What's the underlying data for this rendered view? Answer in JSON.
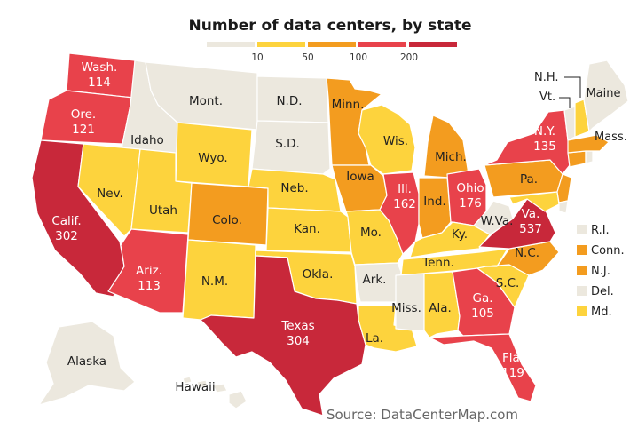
{
  "title": "Number of data centers, by state",
  "legend": {
    "tick_labels": [
      "10",
      "50",
      "100",
      "200"
    ],
    "colors": [
      "#ece8de",
      "#fdd33d",
      "#f39c1f",
      "#e8424b",
      "#c8283a"
    ]
  },
  "source": "Source: DataCenterMap.com",
  "states": [
    {
      "abbr": "Wash.",
      "value": "114",
      "bin": 3
    },
    {
      "abbr": "Ore.",
      "value": "121",
      "bin": 3
    },
    {
      "abbr": "Calif.",
      "value": "302",
      "bin": 4
    },
    {
      "abbr": "Idaho",
      "value": "",
      "bin": 0
    },
    {
      "abbr": "Mont.",
      "value": "",
      "bin": 0
    },
    {
      "abbr": "Nev.",
      "value": "",
      "bin": 1
    },
    {
      "abbr": "Wyo.",
      "value": "",
      "bin": 1
    },
    {
      "abbr": "Utah",
      "value": "",
      "bin": 1
    },
    {
      "abbr": "Colo.",
      "value": "",
      "bin": 2
    },
    {
      "abbr": "Ariz.",
      "value": "113",
      "bin": 3
    },
    {
      "abbr": "N.M.",
      "value": "",
      "bin": 1
    },
    {
      "abbr": "N.D.",
      "value": "",
      "bin": 0
    },
    {
      "abbr": "S.D.",
      "value": "",
      "bin": 0
    },
    {
      "abbr": "Neb.",
      "value": "",
      "bin": 1
    },
    {
      "abbr": "Kan.",
      "value": "",
      "bin": 1
    },
    {
      "abbr": "Okla.",
      "value": "",
      "bin": 1
    },
    {
      "abbr": "Texas",
      "value": "304",
      "bin": 4
    },
    {
      "abbr": "Minn.",
      "value": "",
      "bin": 2
    },
    {
      "abbr": "Iowa",
      "value": "",
      "bin": 2
    },
    {
      "abbr": "Mo.",
      "value": "",
      "bin": 1
    },
    {
      "abbr": "Ark.",
      "value": "",
      "bin": 0
    },
    {
      "abbr": "La.",
      "value": "",
      "bin": 1
    },
    {
      "abbr": "Wis.",
      "value": "",
      "bin": 1
    },
    {
      "abbr": "Ill.",
      "value": "162",
      "bin": 3
    },
    {
      "abbr": "Mich.",
      "value": "",
      "bin": 2
    },
    {
      "abbr": "Ind.",
      "value": "",
      "bin": 2
    },
    {
      "abbr": "Ohio",
      "value": "176",
      "bin": 3
    },
    {
      "abbr": "Ky.",
      "value": "",
      "bin": 1
    },
    {
      "abbr": "Tenn.",
      "value": "",
      "bin": 1
    },
    {
      "abbr": "Miss.",
      "value": "",
      "bin": 0
    },
    {
      "abbr": "Ala.",
      "value": "",
      "bin": 1
    },
    {
      "abbr": "Ga.",
      "value": "105",
      "bin": 3
    },
    {
      "abbr": "Fla.",
      "value": "119",
      "bin": 3
    },
    {
      "abbr": "S.C.",
      "value": "",
      "bin": 1
    },
    {
      "abbr": "N.C.",
      "value": "",
      "bin": 2
    },
    {
      "abbr": "Va.",
      "value": "537",
      "bin": 4
    },
    {
      "abbr": "W.Va.",
      "value": "",
      "bin": 0
    },
    {
      "abbr": "Pa.",
      "value": "",
      "bin": 2
    },
    {
      "abbr": "N.Y.",
      "value": "135",
      "bin": 3
    },
    {
      "abbr": "Mass.",
      "value": "",
      "bin": 2
    },
    {
      "abbr": "Maine",
      "value": "",
      "bin": 0
    },
    {
      "abbr": "N.H.",
      "value": "",
      "bin": 1
    },
    {
      "abbr": "Vt.",
      "value": "",
      "bin": 0
    },
    {
      "abbr": "Alaska",
      "value": "",
      "bin": 0
    },
    {
      "abbr": "Hawaii",
      "value": "",
      "bin": 0
    }
  ],
  "small_states_legend": [
    {
      "abbr": "R.I.",
      "bin": 0
    },
    {
      "abbr": "Conn.",
      "bin": 2
    },
    {
      "abbr": "N.J.",
      "bin": 2
    },
    {
      "abbr": "Del.",
      "bin": 0
    },
    {
      "abbr": "Md.",
      "bin": 1
    }
  ]
}
